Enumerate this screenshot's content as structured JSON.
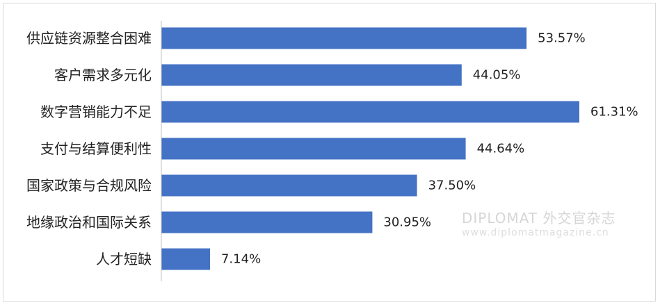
{
  "chart_data": {
    "type": "bar",
    "orientation": "horizontal",
    "categories": [
      "供应链资源整合困难",
      "客户需求多元化",
      "数字营销能力不足",
      "支付与结算便利性",
      "国家政策与合规风险",
      "地缘政治和国际关系",
      "人才短缺"
    ],
    "values": [
      53.57,
      44.05,
      61.31,
      44.64,
      37.5,
      30.95,
      7.14
    ],
    "value_labels": [
      "53.57%",
      "44.05%",
      "61.31%",
      "44.64%",
      "37.50%",
      "30.95%",
      "7.14%"
    ],
    "xlim": [
      0,
      70
    ],
    "grid": false,
    "legend": "none",
    "bar_color": "#4472c4"
  },
  "watermark": {
    "title": "DIPLOMAT 外交官杂志",
    "url": "www.diplomatmagazine.cn"
  },
  "colors": {
    "bar": "#4472c4",
    "axis": "#bfbfbf",
    "text": "#222222",
    "border": "#d9d9d9"
  }
}
